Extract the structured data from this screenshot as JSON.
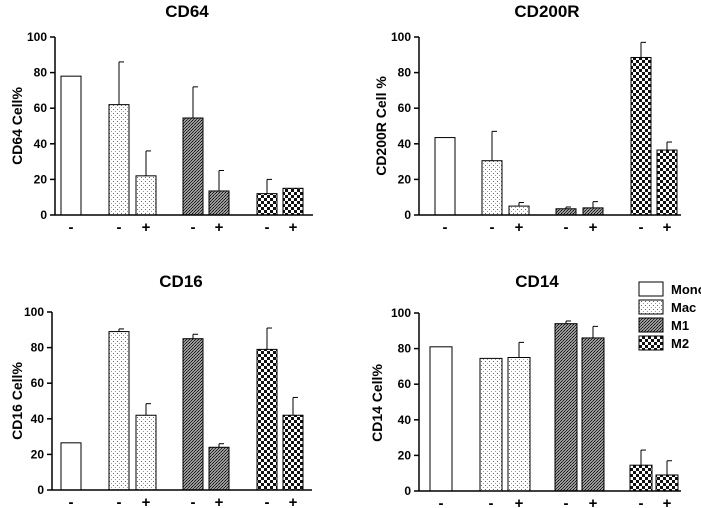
{
  "chart_data": [
    {
      "type": "bar",
      "title": "CD64",
      "ylabel": "CD64 Cell%",
      "ylim": [
        0,
        100
      ],
      "yticks": [
        0,
        20,
        40,
        60,
        80,
        100
      ],
      "bars": [
        {
          "group": "Mono",
          "label": "-",
          "value": 78,
          "error": null
        },
        {
          "group": "Mac",
          "label": "-",
          "value": 62,
          "error": 24
        },
        {
          "group": "Mac",
          "label": "+",
          "value": 22,
          "error": 14
        },
        {
          "group": "M1",
          "label": "-",
          "value": 54.5,
          "error": 17.5
        },
        {
          "group": "M1",
          "label": "+",
          "value": 13.5,
          "error": 11.5
        },
        {
          "group": "M2",
          "label": "-",
          "value": 12,
          "error": 8
        },
        {
          "group": "M2",
          "label": "+",
          "value": 15,
          "error": null
        }
      ]
    },
    {
      "type": "bar",
      "title": "CD200R",
      "ylabel": "CD200R Cell %",
      "ylim": [
        0,
        100
      ],
      "yticks": [
        0,
        20,
        40,
        60,
        80,
        100
      ],
      "bars": [
        {
          "group": "Mono",
          "label": "-",
          "value": 43.5,
          "error": null
        },
        {
          "group": "Mac",
          "label": "-",
          "value": 30.5,
          "error": 16.5
        },
        {
          "group": "Mac",
          "label": "+",
          "value": 5,
          "error": 2
        },
        {
          "group": "M1",
          "label": "-",
          "value": 3.5,
          "error": 1
        },
        {
          "group": "M1",
          "label": "+",
          "value": 4,
          "error": 3.5
        },
        {
          "group": "M2",
          "label": "-",
          "value": 88.5,
          "error": 8.5
        },
        {
          "group": "M2",
          "label": "+",
          "value": 36.5,
          "error": 4.5
        }
      ]
    },
    {
      "type": "bar",
      "title": "CD16",
      "ylabel": "CD16 Cell%",
      "ylim": [
        0,
        100
      ],
      "yticks": [
        0,
        20,
        40,
        60,
        80,
        100
      ],
      "bars": [
        {
          "group": "Mono",
          "label": "-",
          "value": 26.5,
          "error": null
        },
        {
          "group": "Mac",
          "label": "-",
          "value": 89,
          "error": 1.5
        },
        {
          "group": "Mac",
          "label": "+",
          "value": 42,
          "error": 6.5
        },
        {
          "group": "M1",
          "label": "-",
          "value": 85,
          "error": 2.5
        },
        {
          "group": "M1",
          "label": "+",
          "value": 24,
          "error": 2
        },
        {
          "group": "M2",
          "label": "-",
          "value": 79,
          "error": 12
        },
        {
          "group": "M2",
          "label": "+",
          "value": 42,
          "error": 10
        }
      ]
    },
    {
      "type": "bar",
      "title": "CD14",
      "ylabel": "CD14 Cell%",
      "ylim": [
        0,
        100
      ],
      "yticks": [
        0,
        20,
        40,
        60,
        80,
        100
      ],
      "bars": [
        {
          "group": "Mono",
          "label": "-",
          "value": 81,
          "error": null
        },
        {
          "group": "Mac",
          "label": "-",
          "value": 74.5,
          "error": null
        },
        {
          "group": "Mac",
          "label": "+",
          "value": 75,
          "error": 8.5
        },
        {
          "group": "M1",
          "label": "-",
          "value": 94,
          "error": 1.5
        },
        {
          "group": "M1",
          "label": "+",
          "value": 86,
          "error": 6.5
        },
        {
          "group": "M2",
          "label": "-",
          "value": 14.5,
          "error": 8.5
        },
        {
          "group": "M2",
          "label": "+",
          "value": 9,
          "error": 8
        }
      ]
    }
  ],
  "legend": {
    "placement": "top-right of CD14 panel",
    "items": [
      {
        "name": "Mono",
        "pattern": "open"
      },
      {
        "name": "Mac",
        "pattern": "dots"
      },
      {
        "name": "M1",
        "pattern": "dense-grid"
      },
      {
        "name": "M2",
        "pattern": "checker"
      }
    ]
  }
}
